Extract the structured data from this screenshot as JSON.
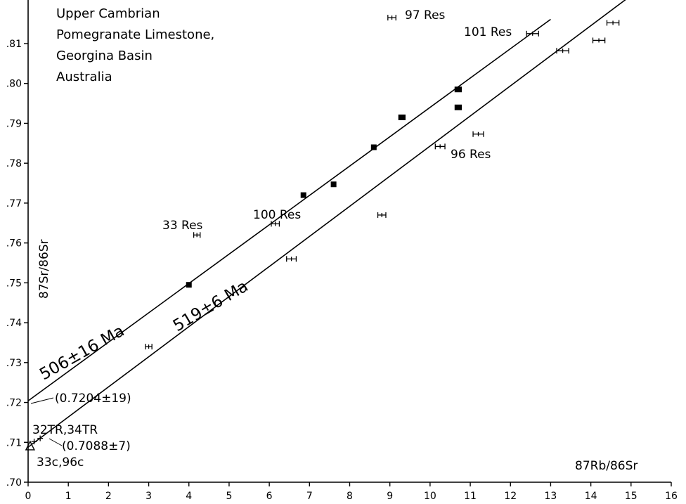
{
  "chart_data": {
    "type": "scatter",
    "title_lines": [
      "Upper Cambrian",
      "Pomegranate Limestone,",
      "Georgina Basin",
      "Australia"
    ],
    "xlabel": "87Rb/86Sr",
    "ylabel": "87Sr/86Sr",
    "xlim": [
      0,
      16
    ],
    "ylim": [
      0.7,
      0.815
    ],
    "x_ticks": [
      "0",
      "1",
      "2",
      "3",
      "4",
      "5",
      "6",
      "7",
      "8",
      "9",
      "10",
      "11",
      "12",
      "13",
      "14",
      "15",
      "16"
    ],
    "y_ticks": [
      ".70",
      ".71",
      ".72",
      ".73",
      ".74",
      ".75",
      ".76",
      ".77",
      ".78",
      ".79",
      ".80",
      ".81"
    ],
    "grid": false,
    "series": [
      {
        "marker": "filled-box",
        "x": [
          4.0,
          6.85,
          7.6,
          8.6,
          9.3,
          10.7,
          10.7
        ],
        "y": [
          0.7495,
          0.772,
          0.7747,
          0.784,
          0.7915,
          0.7985,
          0.794
        ],
        "xerr": [
          0.05,
          0.06,
          0.06,
          0.07,
          0.09,
          0.09,
          0.09
        ]
      },
      {
        "marker": "errorbar",
        "x": [
          9.05,
          12.55,
          14.55,
          13.3,
          14.2,
          11.2,
          10.25,
          6.15,
          8.8,
          6.55,
          4.2,
          3.0
        ],
        "y": [
          0.8165,
          0.8125,
          0.8152,
          0.8082,
          0.8108,
          0.7873,
          0.7842,
          0.7648,
          0.767,
          0.756,
          0.762,
          0.734
        ],
        "xerr": [
          0.1,
          0.15,
          0.15,
          0.15,
          0.15,
          0.13,
          0.12,
          0.1,
          0.1,
          0.12,
          0.08,
          0.08
        ]
      },
      {
        "marker": "cross",
        "x": [
          0.15,
          0.3
        ],
        "y": [
          0.7102,
          0.711
        ]
      },
      {
        "marker": "triangle",
        "x": [
          0.05
        ],
        "y": [
          0.709
        ]
      }
    ],
    "isochrons": [
      {
        "label": "506±16 Ma",
        "intercept": 0.7204,
        "slope": 0.00736,
        "x_range": [
          0,
          13
        ]
      },
      {
        "label": "519±6 Ma",
        "intercept": 0.7088,
        "slope": 0.00755,
        "x_range": [
          0,
          15.2
        ]
      }
    ],
    "point_labels": [
      "97 Res",
      "101 Res",
      "96 Res",
      "100 Res",
      "33 Res"
    ],
    "intercept_labels": [
      "(0.7204±19)",
      "(0.7088±7)"
    ],
    "sample_labels": [
      "32TR,34TR",
      "33c,96c"
    ]
  }
}
